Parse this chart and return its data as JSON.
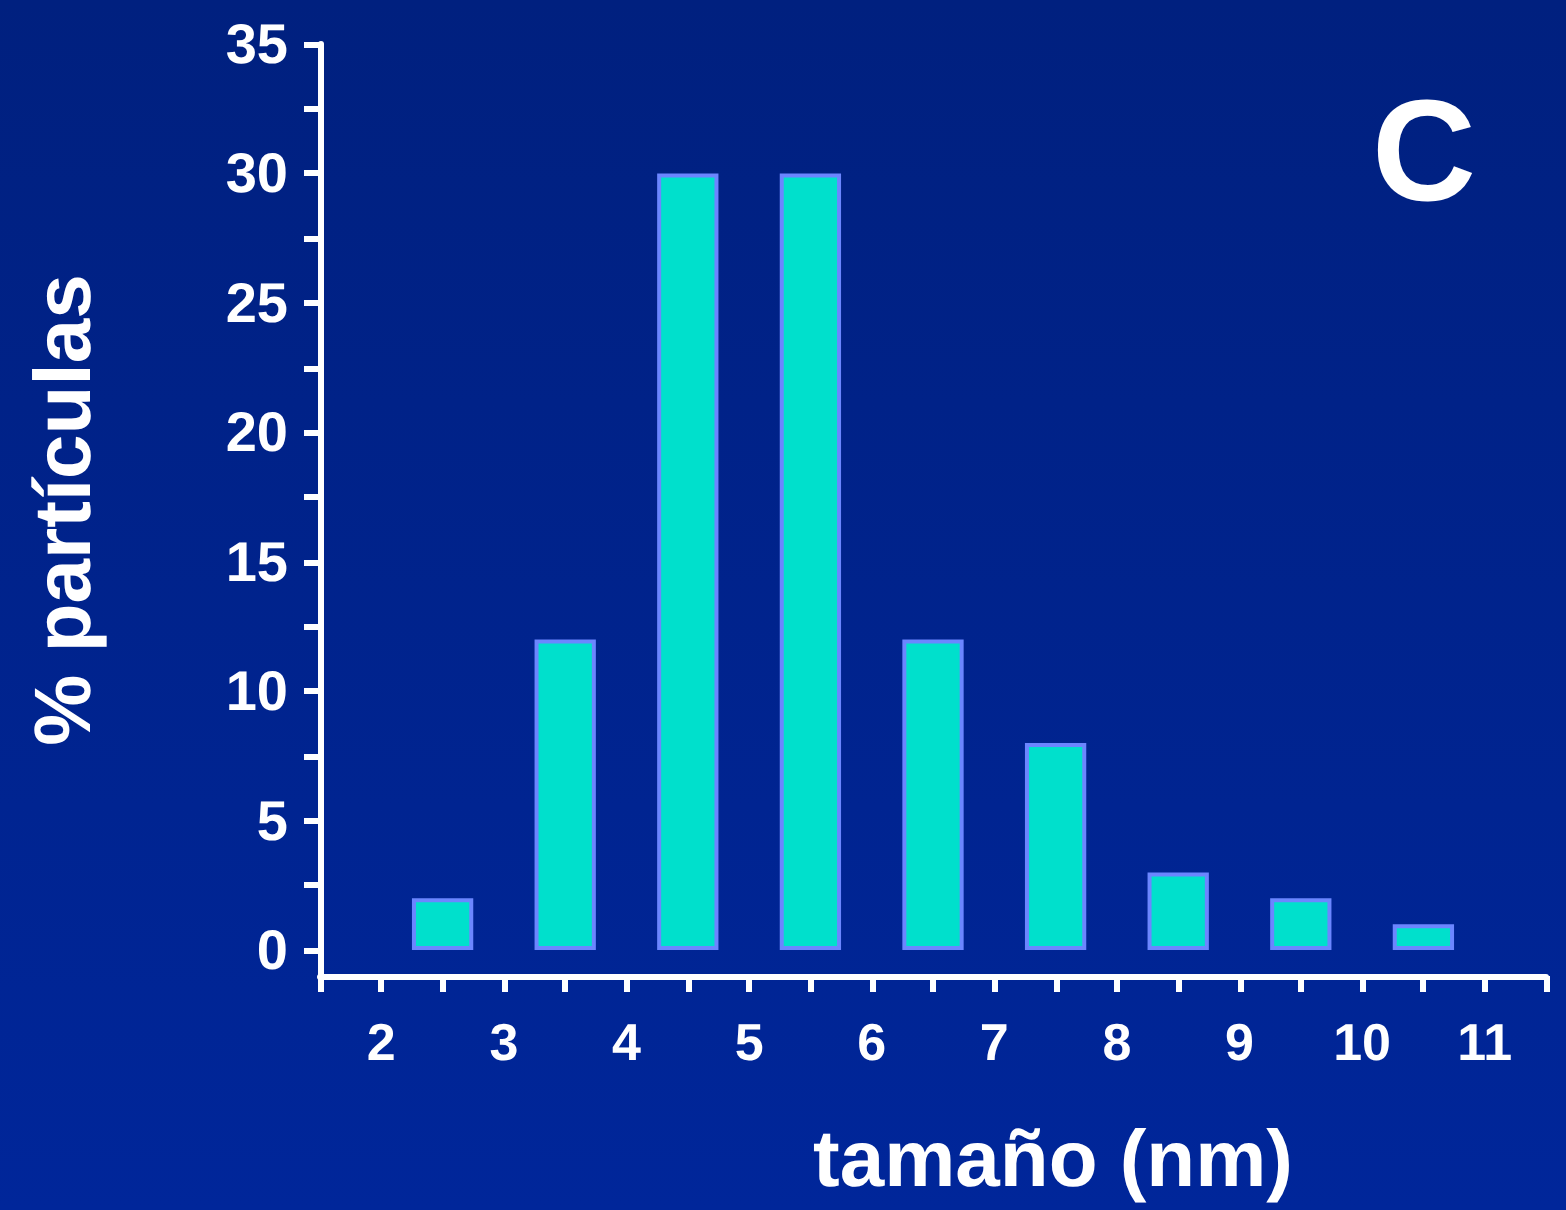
{
  "chart_data": {
    "type": "bar",
    "xlabel": "tamaño (nm)",
    "ylabel": "% partículas",
    "annotations": [
      "C"
    ],
    "x": [
      2.5,
      3.5,
      4.5,
      5.5,
      6.5,
      7.5,
      8.5,
      9.5,
      10.5
    ],
    "values": [
      2,
      12,
      30,
      30,
      12,
      8,
      3,
      2,
      1
    ],
    "color": "#00e0cc",
    "xlim": [
      1.5,
      11.5
    ],
    "xticks": [
      {
        "value": 1.5,
        "label": null
      },
      2,
      {
        "value": 2.5,
        "label": null
      },
      3,
      {
        "value": 3.5,
        "label": null
      },
      4,
      {
        "value": 4.5,
        "label": null
      },
      5,
      {
        "value": 5.5,
        "label": null
      },
      6,
      {
        "value": 6.5,
        "label": null
      },
      7,
      {
        "value": 7.5,
        "label": null
      },
      8,
      {
        "value": 8.5,
        "label": null
      },
      9,
      {
        "value": 9.5,
        "label": null
      },
      10,
      {
        "value": 10.5,
        "label": null
      },
      11,
      {
        "value": 11.5,
        "label": null
      }
    ],
    "ylim": [
      -1,
      35
    ],
    "yticks": [
      0,
      {
        "value": 2.5,
        "label": null
      },
      5,
      {
        "value": 7.5,
        "label": null
      },
      10,
      {
        "value": 12.5,
        "label": null
      },
      15,
      {
        "value": 17.5,
        "label": null
      },
      20,
      {
        "value": 22.5,
        "label": null
      },
      25,
      {
        "value": 27.5,
        "label": null
      },
      30,
      {
        "value": 32.5,
        "label": null
      },
      35
    ],
    "grid": false
  }
}
